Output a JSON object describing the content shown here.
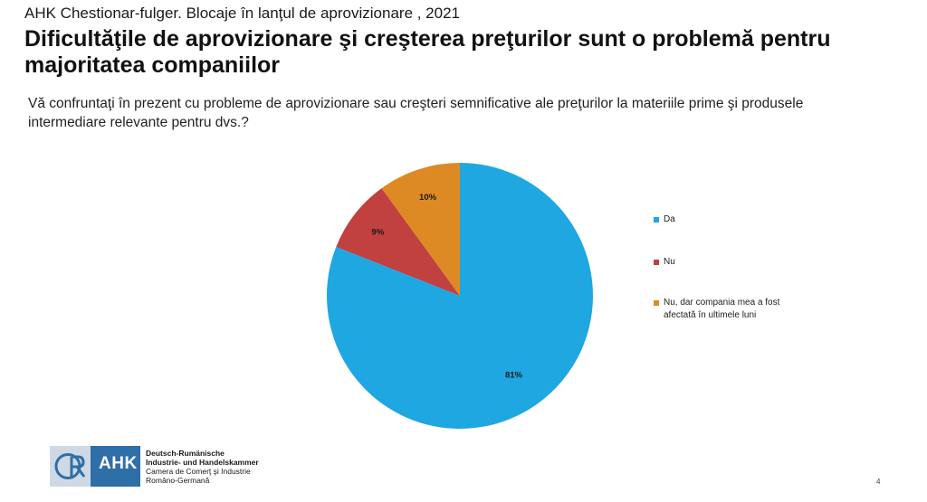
{
  "header": {
    "kicker": "AHK Chestionar-fulger. Blocaje în lanţul de aprovizionare , 2021",
    "headline": "Dificultăţile de aprovizionare şi creşterea preţurilor sunt o problemă pentru majoritatea companiilor",
    "question": "Vă confruntaţi în prezent cu probleme de aprovizionare sau creşteri semnificative ale preţurilor la materiile prime şi produsele intermediare relevante pentru  dvs.?"
  },
  "chart_data": {
    "type": "pie",
    "categories": [
      "Da",
      "Nu",
      "Nu, dar compania mea a fost afectată în ultimele luni"
    ],
    "values": [
      81,
      9,
      10
    ],
    "data_labels": [
      "81%",
      "9%",
      "10%"
    ],
    "colors": [
      "#1ea7e1",
      "#c0413f",
      "#de8a24"
    ],
    "legend": "right"
  },
  "footer": {
    "logo_mark": "AHK",
    "org_line1": "Deutsch-Rumänische",
    "org_line2": "Industrie- und Handelskammer",
    "org_line3": "Camera de Comerţ şi Industrie",
    "org_line4": "Româno-Germană",
    "page_number": "4"
  }
}
